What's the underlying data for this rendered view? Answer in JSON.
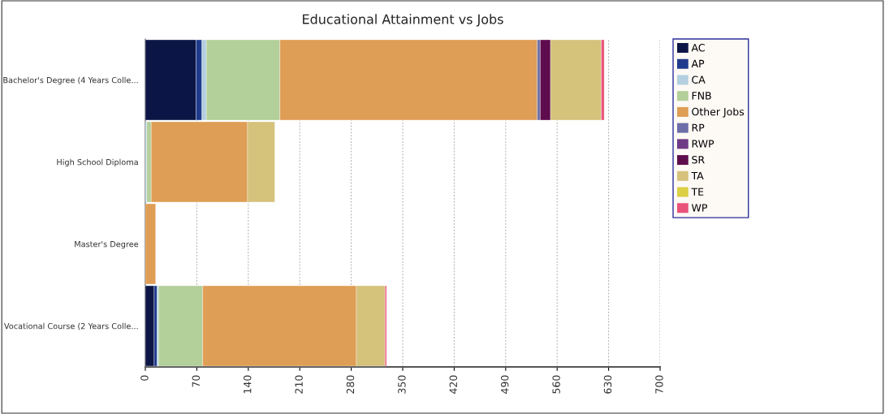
{
  "chart_data": {
    "type": "bar",
    "orientation": "horizontal",
    "stacked": true,
    "title": "Educational Attainment vs Jobs",
    "categories": [
      "Bachelor's Degree (4 Years Colle...",
      "High School Diploma",
      "Master's Degree",
      "Vocational Course (2 Years Colle..."
    ],
    "series": [
      {
        "name": "AC",
        "color": "#0c1646",
        "values": [
          69,
          null,
          null,
          12
        ]
      },
      {
        "name": "AP",
        "color": "#1f3a8c",
        "values": [
          8,
          null,
          null,
          4
        ]
      },
      {
        "name": "CA",
        "color": "#b3cfe0",
        "values": [
          6,
          2,
          null,
          2
        ]
      },
      {
        "name": "FNB",
        "color": "#b3cf9a",
        "values": [
          100,
          6,
          null,
          60
        ]
      },
      {
        "name": "Other Jobs",
        "color": "#df9e55",
        "values": [
          350,
          131,
          14,
          209
        ]
      },
      {
        "name": "RP",
        "color": "#6b6ea8",
        "values": [
          4,
          null,
          null,
          null
        ]
      },
      {
        "name": "RWP",
        "color": "#6e3a86",
        "values": [
          null,
          null,
          null,
          null
        ]
      },
      {
        "name": "SR",
        "color": "#5e0c4e",
        "values": [
          14,
          null,
          null,
          null
        ]
      },
      {
        "name": "TA",
        "color": "#d5c27b",
        "values": [
          69,
          37,
          null,
          39
        ]
      },
      {
        "name": "TE",
        "color": "#dccf45",
        "values": [
          null,
          null,
          null,
          null
        ]
      },
      {
        "name": "WP",
        "color": "#e9537a",
        "values": [
          4,
          null,
          null,
          2
        ]
      }
    ],
    "xlim": [
      0,
      700
    ],
    "xticks": [
      0,
      70,
      140,
      210,
      280,
      350,
      420,
      490,
      560,
      630,
      700
    ],
    "grid": "x",
    "legend": "right"
  }
}
